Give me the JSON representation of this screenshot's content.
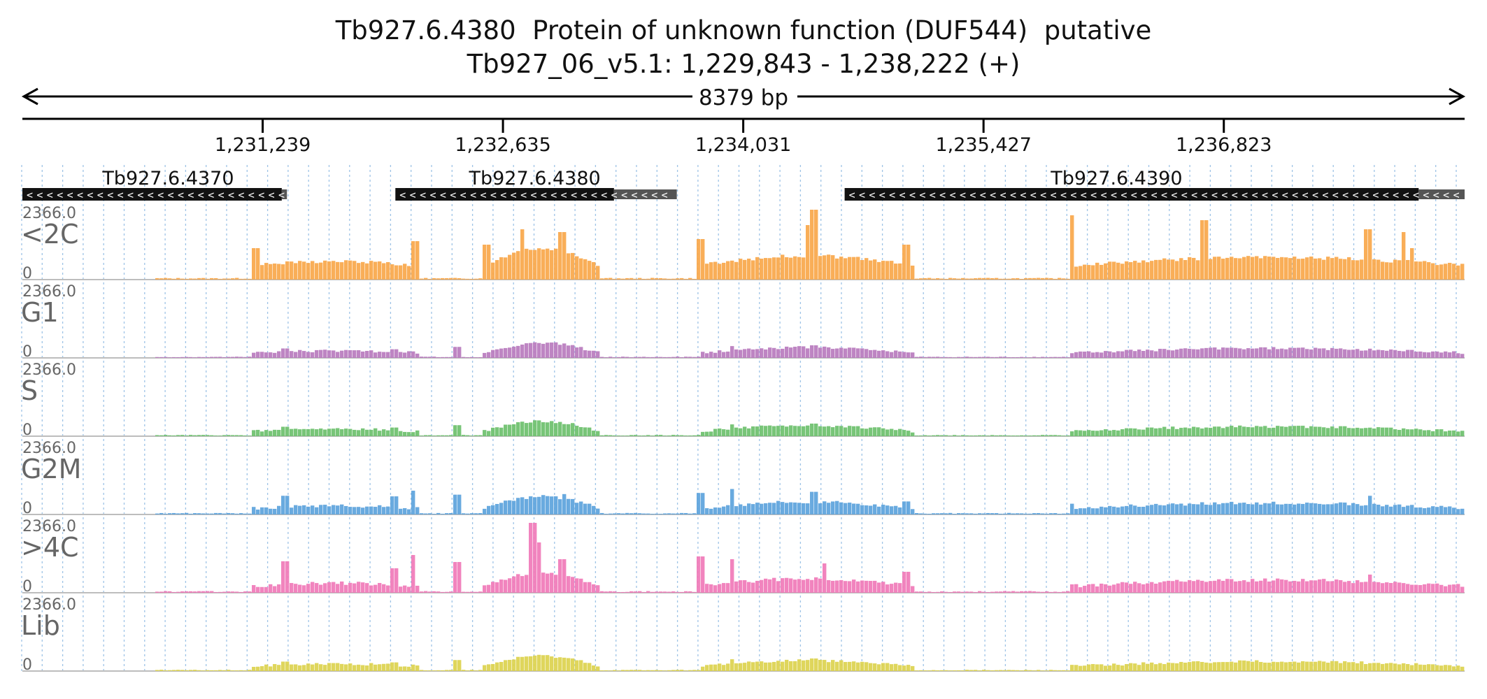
{
  "header": {
    "title": "Tb927.6.4380  Protein of unknown function (DUF544)  putative",
    "location": "Tb927_06_v5.1: 1,229,843 - 1,238,222 (+)"
  },
  "region": {
    "chromosome": "Tb927_06_v5.1",
    "start": 1229843,
    "end": 1238222,
    "span_label": "8379 bp"
  },
  "ruler": {
    "ticks": [
      {
        "pos": 1231239,
        "label": "1,231,239"
      },
      {
        "pos": 1232635,
        "label": "1,232,635"
      },
      {
        "pos": 1234031,
        "label": "1,234,031"
      },
      {
        "pos": 1235427,
        "label": "1,235,427"
      },
      {
        "pos": 1236823,
        "label": "1,236,823"
      }
    ]
  },
  "genes": [
    {
      "name": "Tb927.6.4370",
      "label_pos": 1230690,
      "strand": "-",
      "cds": [
        1229843,
        1231350
      ],
      "utr": [
        1231350,
        1231380
      ]
    },
    {
      "name": "Tb927.6.4380",
      "label_pos": 1232820,
      "strand": "-",
      "cds": [
        1232010,
        1233280
      ],
      "utr": [
        1233280,
        1233645
      ]
    },
    {
      "name": "Tb927.6.4390",
      "label_pos": 1236200,
      "strand": "-",
      "cds": [
        1234620,
        1237955
      ],
      "utr": [
        1237955,
        1238222
      ]
    }
  ],
  "tracks": [
    {
      "name": "<2C",
      "max_label": "2366.0",
      "min_label": "0",
      "color": "#F9A74A",
      "type": "high"
    },
    {
      "name": "G1",
      "max_label": "2366.0",
      "min_label": "0",
      "color": "#B87BBE",
      "type": "low"
    },
    {
      "name": "S",
      "max_label": "2366.0",
      "min_label": "0",
      "color": "#6CC06C",
      "type": "low"
    },
    {
      "name": "G2M",
      "max_label": "2366.0",
      "min_label": "0",
      "color": "#5CA3DC",
      "type": "mid"
    },
    {
      "name": ">4C",
      "max_label": "2366.0",
      "min_label": "0",
      "color": "#F07AB8",
      "type": "pink"
    },
    {
      "name": "Lib",
      "max_label": "2366.0",
      "min_label": "0",
      "color": "#DCD24E",
      "type": "low"
    }
  ]
}
